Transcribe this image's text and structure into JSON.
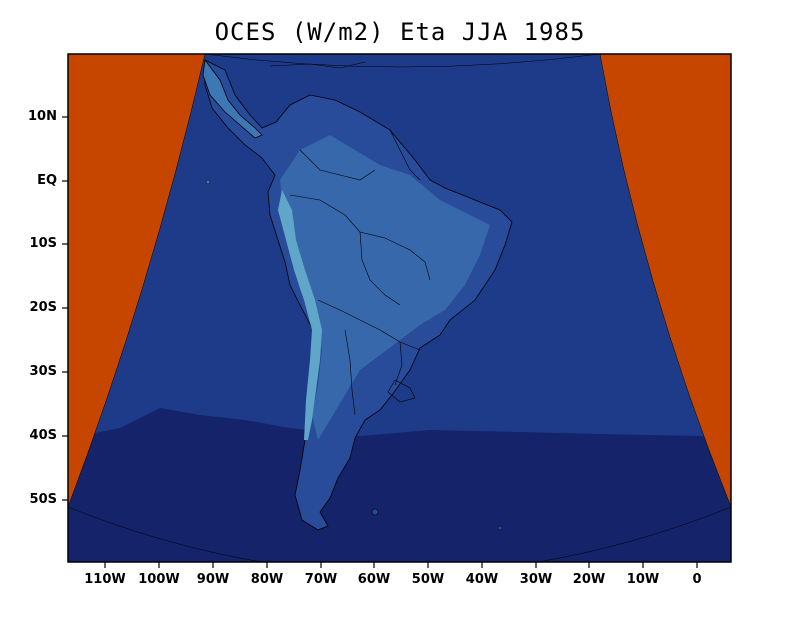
{
  "title": "OCES (W/m2) Eta JJA 1985",
  "colors": {
    "outside_domain": "#c64600",
    "ocean_north": "#1e3b8a",
    "ocean_south": "#14236a",
    "land_low": "#284b9a",
    "land_mid": "#3e78b4",
    "land_high": "#5fa6c8",
    "borders": "#000000"
  },
  "axes": {
    "y_ticks": [
      "10N",
      "EQ",
      "10S",
      "20S",
      "30S",
      "40S",
      "50S"
    ],
    "x_ticks": [
      "110W",
      "100W",
      "90W",
      "80W",
      "70W",
      "60W",
      "50W",
      "40W",
      "30W",
      "20W",
      "10W",
      "0"
    ]
  }
}
